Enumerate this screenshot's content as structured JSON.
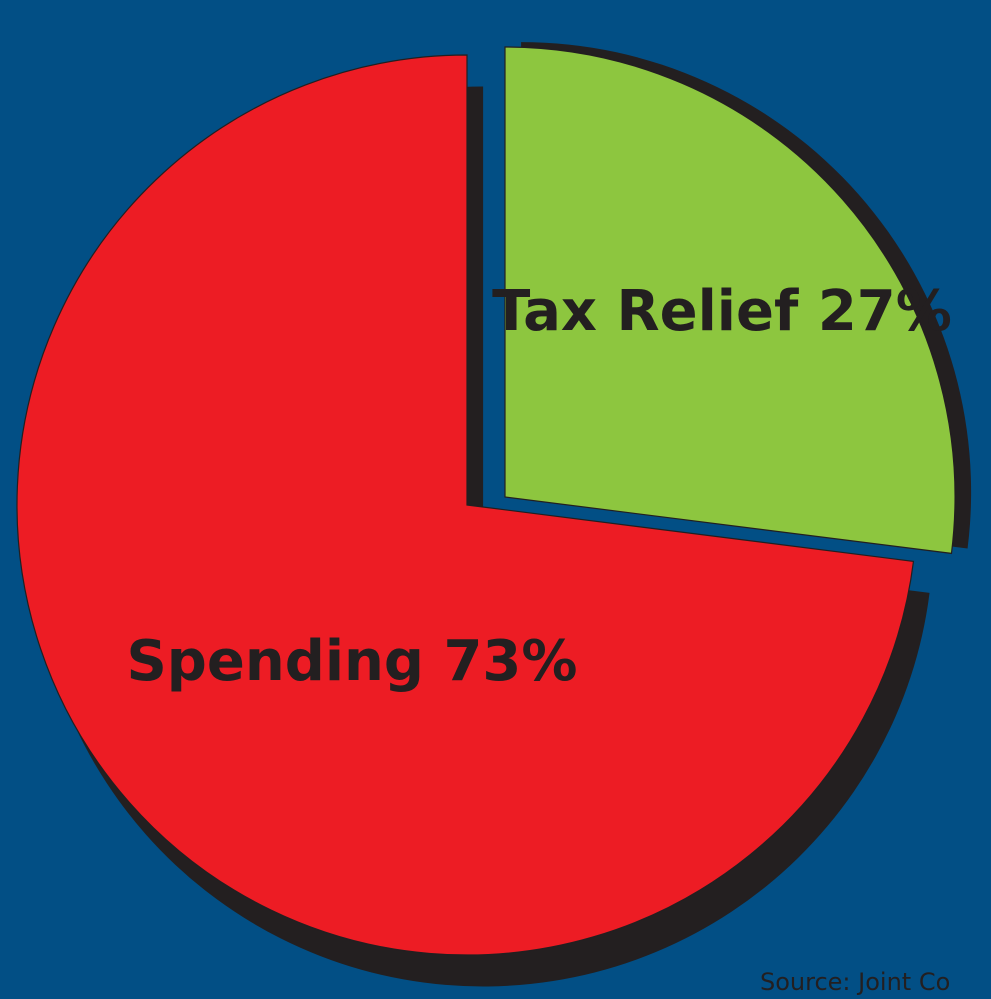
{
  "chart_data": {
    "type": "pie",
    "slices": [
      {
        "label": "Tax Relief 27%",
        "value": 27,
        "color": "#8dc63f"
      },
      {
        "label": "Spending 73%",
        "value": 73,
        "color": "#ed1c24"
      }
    ],
    "source_label": "Source: Joint Co"
  },
  "colors": {
    "background": "#024f85",
    "shadow": "#231f20",
    "label_text": "#231f20"
  }
}
